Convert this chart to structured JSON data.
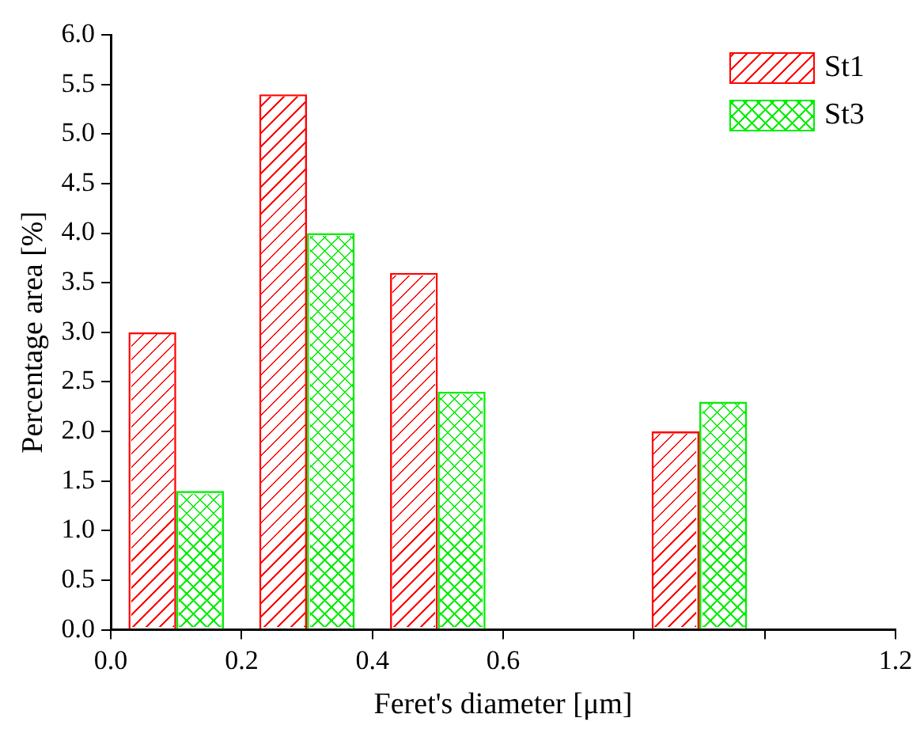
{
  "chart_data": {
    "type": "bar",
    "xlabel": "Feret's diameter [μm]",
    "ylabel": "Percentage area [%]",
    "x": [
      0.1,
      0.3,
      0.5,
      0.9
    ],
    "series": [
      {
        "name": "St1",
        "color": "#ff0000",
        "values": [
          3.0,
          5.4,
          3.6,
          2.0
        ]
      },
      {
        "name": "St3",
        "color": "#00ee00",
        "values": [
          1.4,
          4.0,
          2.4,
          2.3
        ]
      }
    ],
    "xlim": [
      0,
      1.2
    ],
    "xticks": [
      {
        "value": 0,
        "label": "0.0"
      },
      {
        "value": 0.2,
        "label": "0.2"
      },
      {
        "value": 0.4,
        "label": "0.4"
      },
      {
        "value": 0.6,
        "label": "0.6"
      },
      {
        "value": 0.8,
        "label": null
      },
      {
        "value": 1.0,
        "label": null
      },
      {
        "value": 1.2,
        "label": "1.2"
      }
    ],
    "ylim": [
      0,
      6
    ],
    "yticks": [
      {
        "value": 0,
        "label": "0.0"
      },
      {
        "value": 0.5,
        "label": "0.5"
      },
      {
        "value": 1,
        "label": "1.0"
      },
      {
        "value": 1.5,
        "label": "1.5"
      },
      {
        "value": 2,
        "label": "2.0"
      },
      {
        "value": 2.5,
        "label": "2.5"
      },
      {
        "value": 3,
        "label": "3.0"
      },
      {
        "value": 3.5,
        "label": "3.5"
      },
      {
        "value": 4,
        "label": "4.0"
      },
      {
        "value": 4.5,
        "label": "4.5"
      },
      {
        "value": 5,
        "label": "5.0"
      },
      {
        "value": 5.5,
        "label": "5.5"
      },
      {
        "value": 6,
        "label": "6.0"
      }
    ],
    "grid": false,
    "legend": "top right"
  }
}
